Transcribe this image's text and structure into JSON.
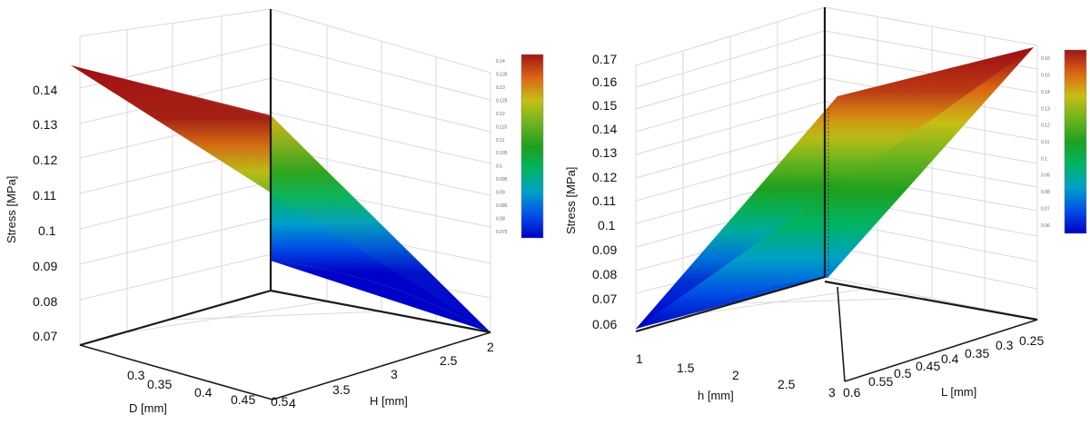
{
  "colors": {
    "colormap": [
      "#0000c8",
      "#0050e6",
      "#00a0c8",
      "#00b464",
      "#1ea01e",
      "#6eb41e",
      "#c8be14",
      "#dc6414",
      "#a01414"
    ],
    "axis": "#1a1a1a",
    "grid": "#d9d9d9"
  },
  "chart_data": [
    {
      "type": "surface",
      "zlabel": "Stress [MPa]",
      "xlabel": "D [mm]",
      "ylabel": "H [mm]",
      "x_ticks": [
        "0.3",
        "0.35",
        "0.4",
        "0.45",
        "0.5"
      ],
      "y_ticks": [
        "4",
        "3.5",
        "3",
        "2.5",
        "2"
      ],
      "z_ticks": [
        "0.14",
        "0.13",
        "0.12",
        "0.11",
        "0.1",
        "0.09",
        "0.08",
        "0.07"
      ],
      "zlim": [
        0.065,
        0.145
      ],
      "colorbar_ticks": [
        "0.075",
        "0.08",
        "0.085",
        "0.09",
        "0.095",
        "0.1",
        "0.105",
        "0.11",
        "0.115",
        "0.12",
        "0.125",
        "0.13",
        "0.135",
        "0.14"
      ],
      "corner_values": {
        "D0.25_H4": 0.145,
        "D0.25_H2": 0.125,
        "D0.5_H4": 0.09,
        "D0.5_H2": 0.065
      }
    },
    {
      "type": "surface",
      "zlabel": "Stress [MPa]",
      "xlabel": "h [mm]",
      "ylabel": "L [mm]",
      "x_ticks": [
        "1",
        "1.5",
        "2",
        "2.5",
        "3"
      ],
      "y_ticks": [
        "0.6",
        "0.55",
        "0.5",
        "0.45",
        "0.4",
        "0.35",
        "0.3",
        "0.25"
      ],
      "z_ticks": [
        "0.17",
        "0.16",
        "0.15",
        "0.14",
        "0.13",
        "0.12",
        "0.11",
        "0.1",
        "0.09",
        "0.08",
        "0.07",
        "0.06"
      ],
      "zlim": [
        0.06,
        0.17
      ],
      "colorbar_ticks": [
        "0.16",
        "0.15",
        "0.14",
        "0.13",
        "0.12",
        "0.11",
        "0.1",
        "0.09",
        "0.08",
        "0.07",
        "0.06"
      ],
      "corner_values": {
        "h1_L0.25": 0.06,
        "h1_L0.6": 0.06,
        "h3_L0.6": 0.15,
        "h3_L0.25": 0.17
      }
    }
  ]
}
